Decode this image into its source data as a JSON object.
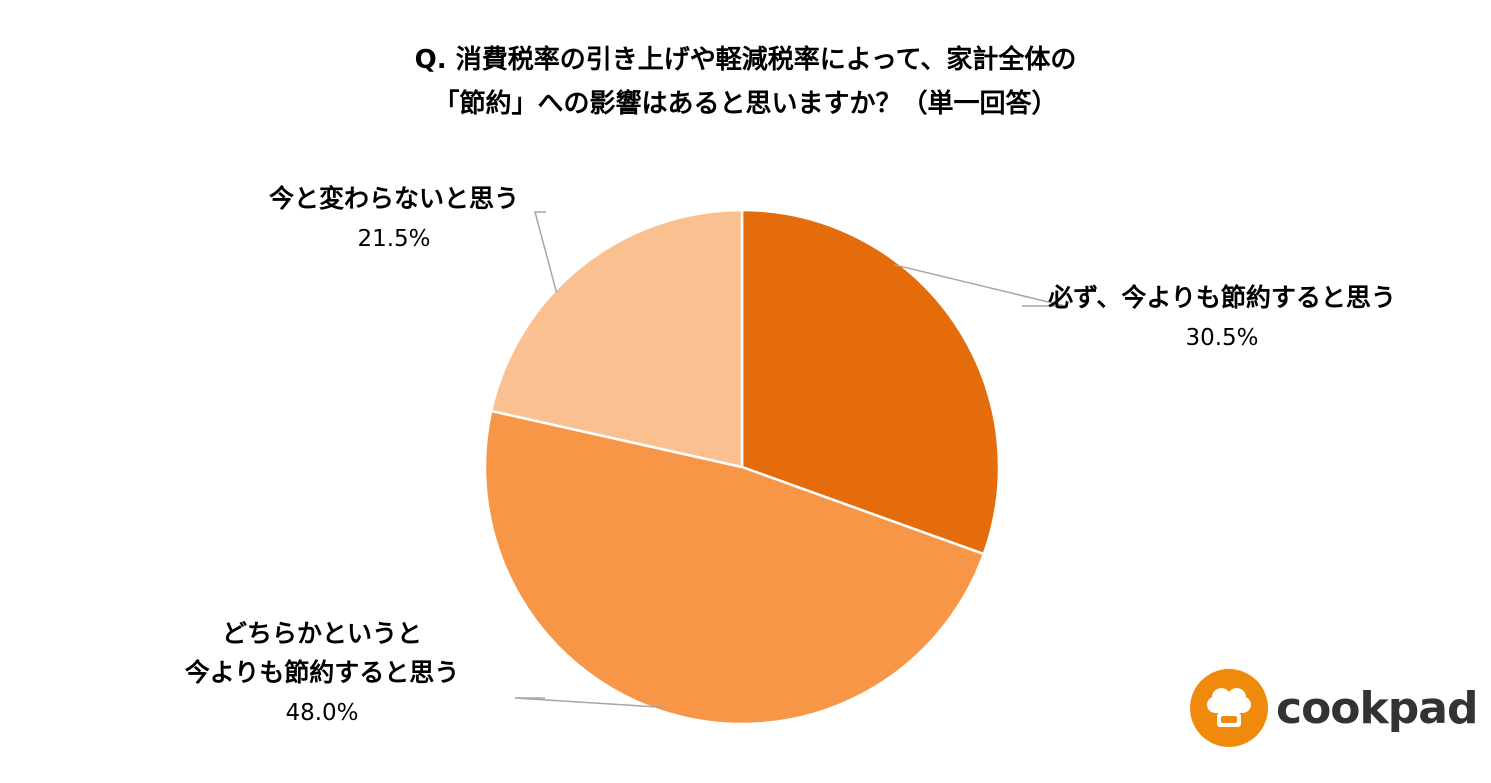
{
  "title": {
    "line1": "Q. 消費税率の引き上げや軽減税率によって、家計全体の",
    "line2": "「節約」への影響はあると思いますか？（単一回答）"
  },
  "chart_data": {
    "type": "pie",
    "title": "Q. 消費税率の引き上げや軽減税率によって、家計全体の「節約」への影響はあると思いますか？（単一回答）",
    "slices": [
      {
        "label_lines": [
          "必ず、今よりも節約すると思う"
        ],
        "value": 30.5,
        "value_label": "30.5%",
        "color": "#e46c0a"
      },
      {
        "label_lines": [
          "どちらかというと",
          "今よりも節約すると思う"
        ],
        "value": 48.0,
        "value_label": "48.0%",
        "color": "#f79646"
      },
      {
        "label_lines": [
          "今と変わらないと思う"
        ],
        "value": 21.5,
        "value_label": "21.5%",
        "color": "#fac090"
      }
    ],
    "start_angle_deg": 0,
    "direction": "clockwise",
    "legend": "none",
    "slice_border_color": "#ffffff",
    "leader_line_color": "#a6a6a6"
  },
  "logo": {
    "text": "cookpad",
    "icon": "chef-hat-icon",
    "color": "#f08a0c"
  }
}
